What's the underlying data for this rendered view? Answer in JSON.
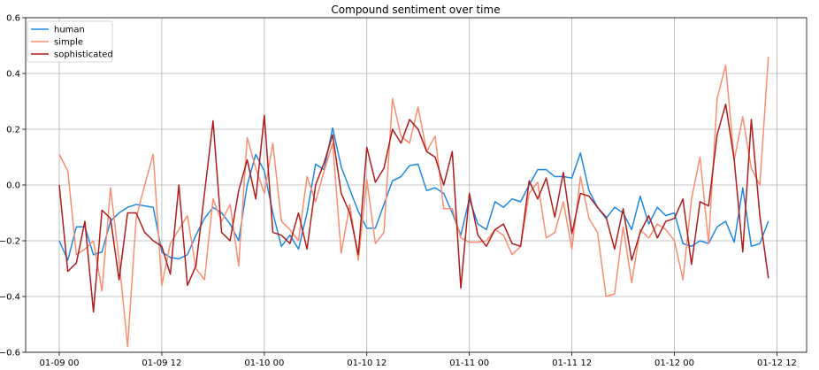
{
  "chart_data": {
    "type": "line",
    "title": "Compound sentiment over time",
    "xlabel": "",
    "ylabel": "",
    "xlim": [
      -0.5,
      73.5
    ],
    "ylim": [
      -0.6,
      0.6
    ],
    "grid": true,
    "legend_position": "top-left",
    "x_ticks": [
      {
        "x": 0,
        "label": "01-09 00"
      },
      {
        "x": 12,
        "label": "01-09 12"
      },
      {
        "x": 24,
        "label": "01-10 00"
      },
      {
        "x": 36,
        "label": "01-10 12"
      },
      {
        "x": 48,
        "label": "01-11 00"
      },
      {
        "x": 60,
        "label": "01-11 12"
      },
      {
        "x": 72,
        "label": "01-12 00"
      },
      {
        "x": 84,
        "label": "01-12 12"
      }
    ],
    "y_ticks": [
      {
        "y": -0.6,
        "label": "−0.6"
      },
      {
        "y": -0.4,
        "label": "−0.4"
      },
      {
        "y": -0.2,
        "label": "−0.2"
      },
      {
        "y": 0.0,
        "label": "0.0"
      },
      {
        "y": 0.2,
        "label": "0.2"
      },
      {
        "y": 0.4,
        "label": "0.4"
      },
      {
        "y": 0.6,
        "label": "0.6"
      }
    ],
    "series": [
      {
        "name": "human",
        "color": "#1e88e5",
        "values": [
          -0.2,
          -0.27,
          -0.15,
          -0.15,
          -0.25,
          -0.24,
          -0.13,
          -0.1,
          -0.08,
          -0.07,
          -0.075,
          -0.08,
          -0.24,
          -0.26,
          -0.265,
          -0.25,
          -0.18,
          -0.12,
          -0.08,
          -0.1,
          -0.14,
          -0.2,
          0.0,
          0.11,
          0.05,
          -0.1,
          -0.22,
          -0.18,
          -0.23,
          -0.1,
          0.075,
          0.055,
          0.205,
          0.065,
          -0.015,
          -0.095,
          -0.155,
          -0.155,
          -0.07,
          0.015,
          0.03,
          0.07,
          0.075,
          -0.02,
          -0.01,
          -0.03,
          -0.1,
          -0.18,
          -0.05,
          -0.14,
          -0.16,
          -0.06,
          -0.08,
          -0.05,
          -0.06,
          0.0,
          0.055,
          0.055,
          0.03,
          0.03,
          0.025,
          0.115,
          -0.02,
          -0.08,
          -0.12,
          -0.08,
          -0.1,
          -0.16,
          -0.04,
          -0.14,
          -0.08,
          -0.11,
          -0.1,
          -0.21,
          -0.22,
          -0.2,
          -0.21,
          -0.15,
          -0.13,
          -0.205,
          -0.01,
          -0.22,
          -0.21,
          -0.13
        ]
      },
      {
        "name": "simple",
        "color": "#fa8e70",
        "values": [
          0.11,
          0.05,
          -0.25,
          -0.23,
          -0.2,
          -0.38,
          -0.01,
          -0.27,
          -0.58,
          -0.12,
          0.0,
          0.11,
          -0.36,
          -0.21,
          -0.16,
          -0.11,
          -0.3,
          -0.34,
          -0.05,
          -0.13,
          -0.07,
          -0.29,
          0.17,
          0.06,
          -0.03,
          0.15,
          -0.13,
          -0.16,
          -0.2,
          0.03,
          -0.06,
          0.05,
          0.15,
          -0.245,
          -0.07,
          -0.27,
          0.02,
          -0.21,
          -0.17,
          0.31,
          0.175,
          0.15,
          0.28,
          0.12,
          0.175,
          -0.085,
          -0.085,
          -0.19,
          -0.205,
          -0.205,
          -0.2,
          -0.16,
          -0.18,
          -0.25,
          -0.22,
          -0.03,
          0.01,
          -0.19,
          -0.17,
          -0.06,
          -0.23,
          0.03,
          -0.12,
          -0.17,
          -0.4,
          -0.39,
          -0.15,
          -0.35,
          -0.16,
          -0.19,
          -0.14,
          -0.16,
          -0.2,
          -0.34,
          -0.05,
          0.1,
          -0.21,
          0.31,
          0.43,
          0.09,
          0.245,
          0.06,
          0.0,
          0.46
        ]
      },
      {
        "name": "sophisticated",
        "color": "#b01c1c",
        "values": [
          0.0,
          -0.31,
          -0.28,
          -0.13,
          -0.455,
          -0.09,
          -0.12,
          -0.34,
          -0.1,
          -0.1,
          -0.17,
          -0.2,
          -0.22,
          -0.32,
          0.0,
          -0.36,
          -0.29,
          -0.03,
          0.23,
          -0.17,
          -0.2,
          -0.02,
          0.09,
          -0.05,
          0.25,
          -0.17,
          -0.18,
          -0.21,
          -0.1,
          -0.23,
          0.0,
          0.08,
          0.18,
          -0.03,
          -0.1,
          -0.25,
          0.135,
          0.01,
          0.06,
          0.2,
          0.15,
          0.235,
          0.2,
          0.12,
          0.1,
          0.0,
          0.12,
          -0.37,
          -0.03,
          -0.18,
          -0.22,
          -0.16,
          -0.14,
          -0.21,
          -0.22,
          0.015,
          -0.05,
          0.025,
          -0.115,
          0.045,
          -0.175,
          -0.03,
          -0.04,
          -0.08,
          -0.115,
          -0.23,
          -0.085,
          -0.27,
          -0.17,
          -0.11,
          -0.19,
          -0.13,
          -0.12,
          -0.05,
          -0.285,
          -0.06,
          -0.075,
          0.18,
          0.29,
          0.09,
          -0.24,
          0.235,
          -0.11,
          -0.335
        ]
      }
    ]
  }
}
